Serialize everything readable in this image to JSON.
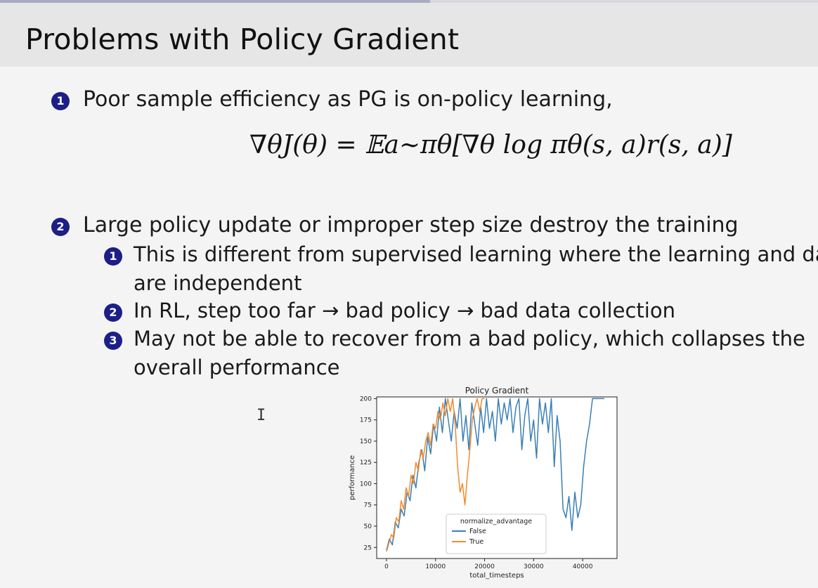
{
  "slide": {
    "title": "Problems with Policy Gradient",
    "items": [
      {
        "number": "1",
        "text": "Poor sample efficiency as PG is on-policy learning,"
      },
      {
        "number": "2",
        "text": "Large policy update or improper step size destroy the training"
      }
    ],
    "formula": "∇θJ(θ) = 𝔼a∼πθ[∇θ log πθ(s, a)r(s, a)]",
    "subitems": [
      {
        "number": "1",
        "lines": [
          "This is different from supervised learning where the learning and data",
          "are independent"
        ]
      },
      {
        "number": "2",
        "lines": [
          "In RL, step too far → bad policy → bad data collection"
        ]
      },
      {
        "number": "3",
        "lines": [
          "May not be able to recover from a bad policy, which collapses the",
          "overall performance"
        ]
      }
    ]
  },
  "colors": {
    "bullet": "#1c1f86",
    "series_false": "#3a7fb5",
    "series_true": "#f28a2a"
  },
  "chart_data": {
    "type": "line",
    "title": "Policy Gradient",
    "xlabel": "total_timesteps",
    "ylabel": "performance",
    "xlim": [
      -2000,
      47000
    ],
    "ylim": [
      12,
      202
    ],
    "xticks": [
      0,
      10000,
      20000,
      30000,
      40000
    ],
    "yticks": [
      25,
      50,
      75,
      100,
      125,
      150,
      175,
      200
    ],
    "legend": {
      "title": "normalize_advantage",
      "position": "lower-center"
    },
    "series": [
      {
        "name": "False",
        "color": "#3a7fb5",
        "x": [
          0,
          600,
          1200,
          1800,
          2400,
          3000,
          3600,
          4200,
          4800,
          5400,
          6000,
          6600,
          7200,
          7800,
          8400,
          9000,
          9600,
          10200,
          10800,
          11400,
          12000,
          12600,
          13200,
          13800,
          14400,
          15000,
          15600,
          16200,
          16800,
          17400,
          18000,
          18600,
          19200,
          19800,
          20400,
          21000,
          21600,
          22200,
          22800,
          23400,
          24000,
          24600,
          25200,
          25800,
          26400,
          27000,
          27600,
          28200,
          28800,
          29400,
          30000,
          30600,
          31200,
          31800,
          32400,
          33000,
          33600,
          34200,
          34800,
          35400,
          36000,
          36600,
          37200,
          37800,
          38400,
          39000,
          39600,
          40200,
          40800,
          41400,
          42000,
          42600,
          43200,
          43800,
          44400
        ],
        "values": [
          22,
          35,
          28,
          55,
          48,
          70,
          62,
          90,
          80,
          110,
          95,
          125,
          140,
          115,
          155,
          135,
          170,
          150,
          190,
          160,
          200,
          175,
          150,
          185,
          165,
          200,
          150,
          180,
          140,
          195,
          170,
          145,
          190,
          160,
          200,
          165,
          185,
          150,
          200,
          170,
          195,
          175,
          200,
          160,
          190,
          200,
          140,
          180,
          200,
          150,
          175,
          130,
          200,
          170,
          195,
          160,
          200,
          120,
          180,
          150,
          70,
          60,
          85,
          45,
          90,
          60,
          75,
          120,
          150,
          170,
          200,
          200,
          200,
          200,
          200
        ]
      },
      {
        "name": "True",
        "color": "#f28a2a",
        "x": [
          0,
          500,
          1000,
          1500,
          2000,
          2500,
          3000,
          3500,
          4000,
          4500,
          5000,
          5500,
          6000,
          6500,
          7000,
          7500,
          8000,
          8500,
          9000,
          9500,
          10000,
          10500,
          11000,
          11500,
          12000,
          12500,
          13000,
          13500,
          14000,
          14500,
          15000,
          15500,
          16000,
          16500,
          17000,
          17500,
          18000,
          18500,
          19000,
          19500,
          20000
        ],
        "values": [
          20,
          30,
          40,
          36,
          60,
          55,
          80,
          70,
          95,
          85,
          110,
          100,
          125,
          115,
          140,
          130,
          150,
          160,
          145,
          170,
          165,
          185,
          175,
          195,
          180,
          200,
          185,
          200,
          170,
          120,
          90,
          100,
          75,
          110,
          140,
          175,
          190,
          200,
          185,
          200,
          200
        ]
      }
    ]
  }
}
